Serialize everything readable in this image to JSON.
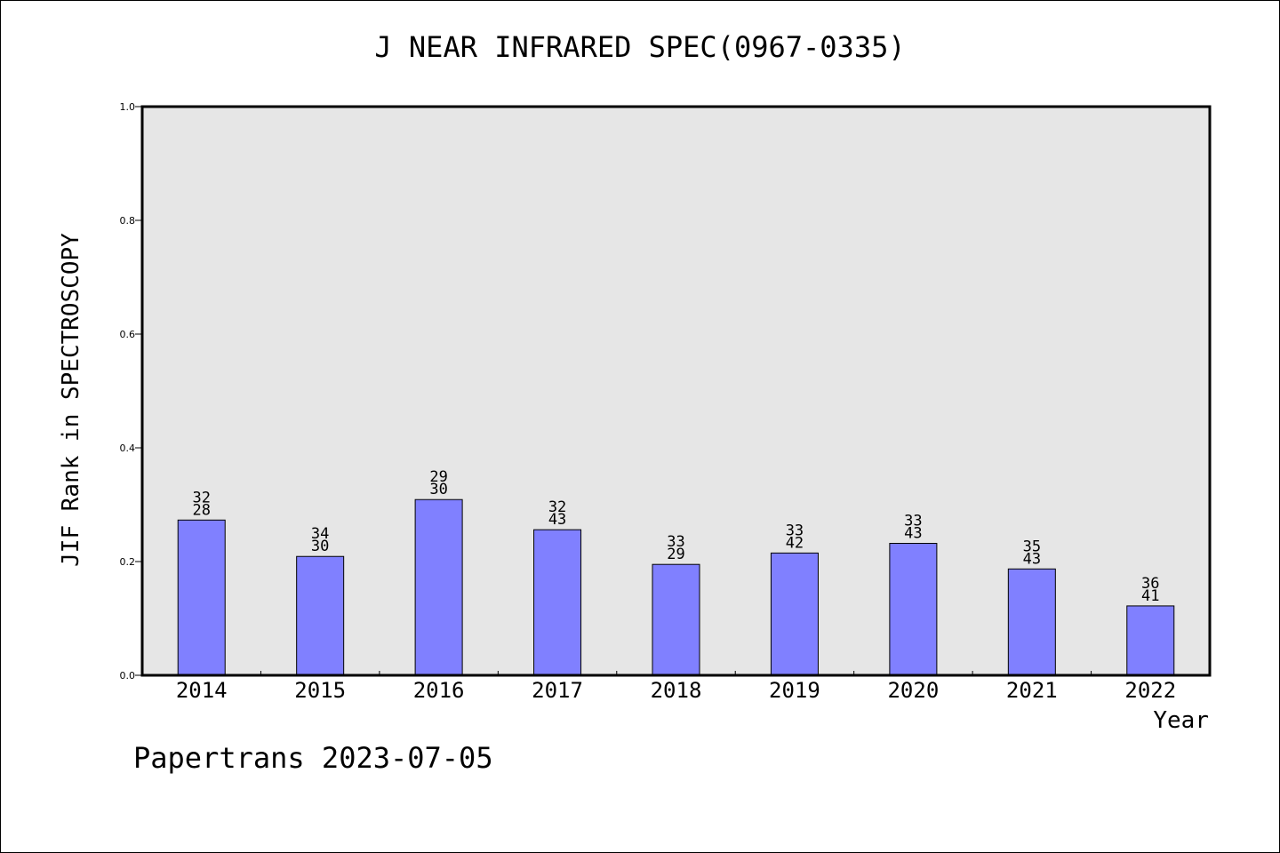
{
  "title": "J NEAR INFRARED SPEC(0967-0335)",
  "footer": "Papertrans 2023-07-05",
  "colors": {
    "plot_background": "#e6e6e6",
    "bar_fill": "#8080ff",
    "bar_stroke": "#000000"
  },
  "chart_data": {
    "type": "bar",
    "title": "J NEAR INFRARED SPEC(0967-0335)",
    "xlabel": "Year",
    "ylabel": "JIF Rank in SPECTROSCOPY",
    "ylim": [
      0.0,
      1.0
    ],
    "yticks": [
      "0.0",
      "0.2",
      "0.4",
      "0.6",
      "0.8",
      "1.0"
    ],
    "categories": [
      "2014",
      "2015",
      "2016",
      "2017",
      "2018",
      "2019",
      "2020",
      "2021",
      "2022"
    ],
    "values": [
      0.273,
      0.209,
      0.309,
      0.256,
      0.195,
      0.215,
      0.232,
      0.187,
      0.122
    ],
    "labels_top": [
      "32",
      "34",
      "29",
      "32",
      "33",
      "33",
      "33",
      "35",
      "36"
    ],
    "labels_bottom": [
      "28",
      "30",
      "30",
      "43",
      "29",
      "42",
      "43",
      "43",
      "41"
    ],
    "grid": false,
    "legend": "none"
  }
}
